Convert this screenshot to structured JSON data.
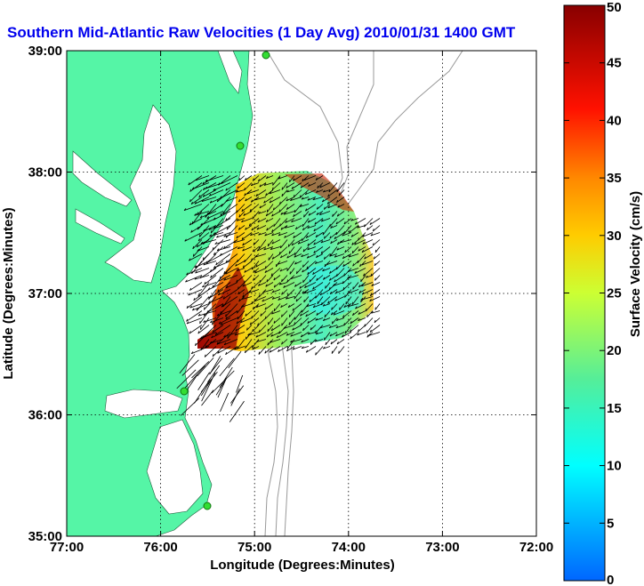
{
  "chart_data": {
    "type": "map",
    "title": "Southern Mid-Atlantic Raw Velocities (1 Day Avg) 2010/01/31 1400 GMT",
    "xlabel": "Longitude (Degrees:Minutes)",
    "ylabel": "Latitude (Degrees:Minutes)",
    "x_ticks": [
      {
        "value": -77,
        "label": "77:00"
      },
      {
        "value": -76,
        "label": "76:00"
      },
      {
        "value": -75,
        "label": "75:00"
      },
      {
        "value": -74,
        "label": "74:00"
      },
      {
        "value": -73,
        "label": "73:00"
      },
      {
        "value": -72,
        "label": "72:00"
      }
    ],
    "y_ticks": [
      {
        "value": 35,
        "label": "35:00"
      },
      {
        "value": 36,
        "label": "36:00"
      },
      {
        "value": 37,
        "label": "37:00"
      },
      {
        "value": 38,
        "label": "38:00"
      },
      {
        "value": 39,
        "label": "39:00"
      }
    ],
    "xlim": [
      -77,
      -72
    ],
    "ylim": [
      35,
      39
    ],
    "grid": "dotted at whole degrees",
    "colorbar": {
      "label": "Surface Velocity (cm/s)",
      "range": [
        0,
        50
      ],
      "ticks": [
        {
          "value": 0,
          "label": "0"
        },
        {
          "value": 5,
          "label": "5"
        },
        {
          "value": 10,
          "label": "10"
        },
        {
          "value": 15,
          "label": "15"
        },
        {
          "value": 20,
          "label": "20"
        },
        {
          "value": 25,
          "label": "25"
        },
        {
          "value": 30,
          "label": "30"
        },
        {
          "value": 35,
          "label": "35"
        },
        {
          "value": 40,
          "label": "40"
        },
        {
          "value": 45,
          "label": "45"
        },
        {
          "value": 50,
          "label": "50"
        }
      ]
    },
    "colors": {
      "land": "#55f5a6",
      "station": "#33dd33",
      "title": "#0000ee",
      "bathymetry": "#999999"
    },
    "velocity_field": {
      "extent_lon": [
        -75.75,
        -73.7
      ],
      "extent_lat": [
        36.6,
        38.0
      ],
      "predominant_direction": "southwest",
      "high_speed_region": "nearshore west and southwest edge (up to ~50 cm/s)",
      "low_speed_region": "offshore center-east (~10-15 cm/s)"
    },
    "stations": [
      {
        "lon": -74.87,
        "lat": 38.94
      },
      {
        "lon": -75.14,
        "lat": 38.22
      },
      {
        "lon": -75.8,
        "lat": 36.19
      },
      {
        "lon": -75.5,
        "lat": 35.25
      }
    ]
  }
}
